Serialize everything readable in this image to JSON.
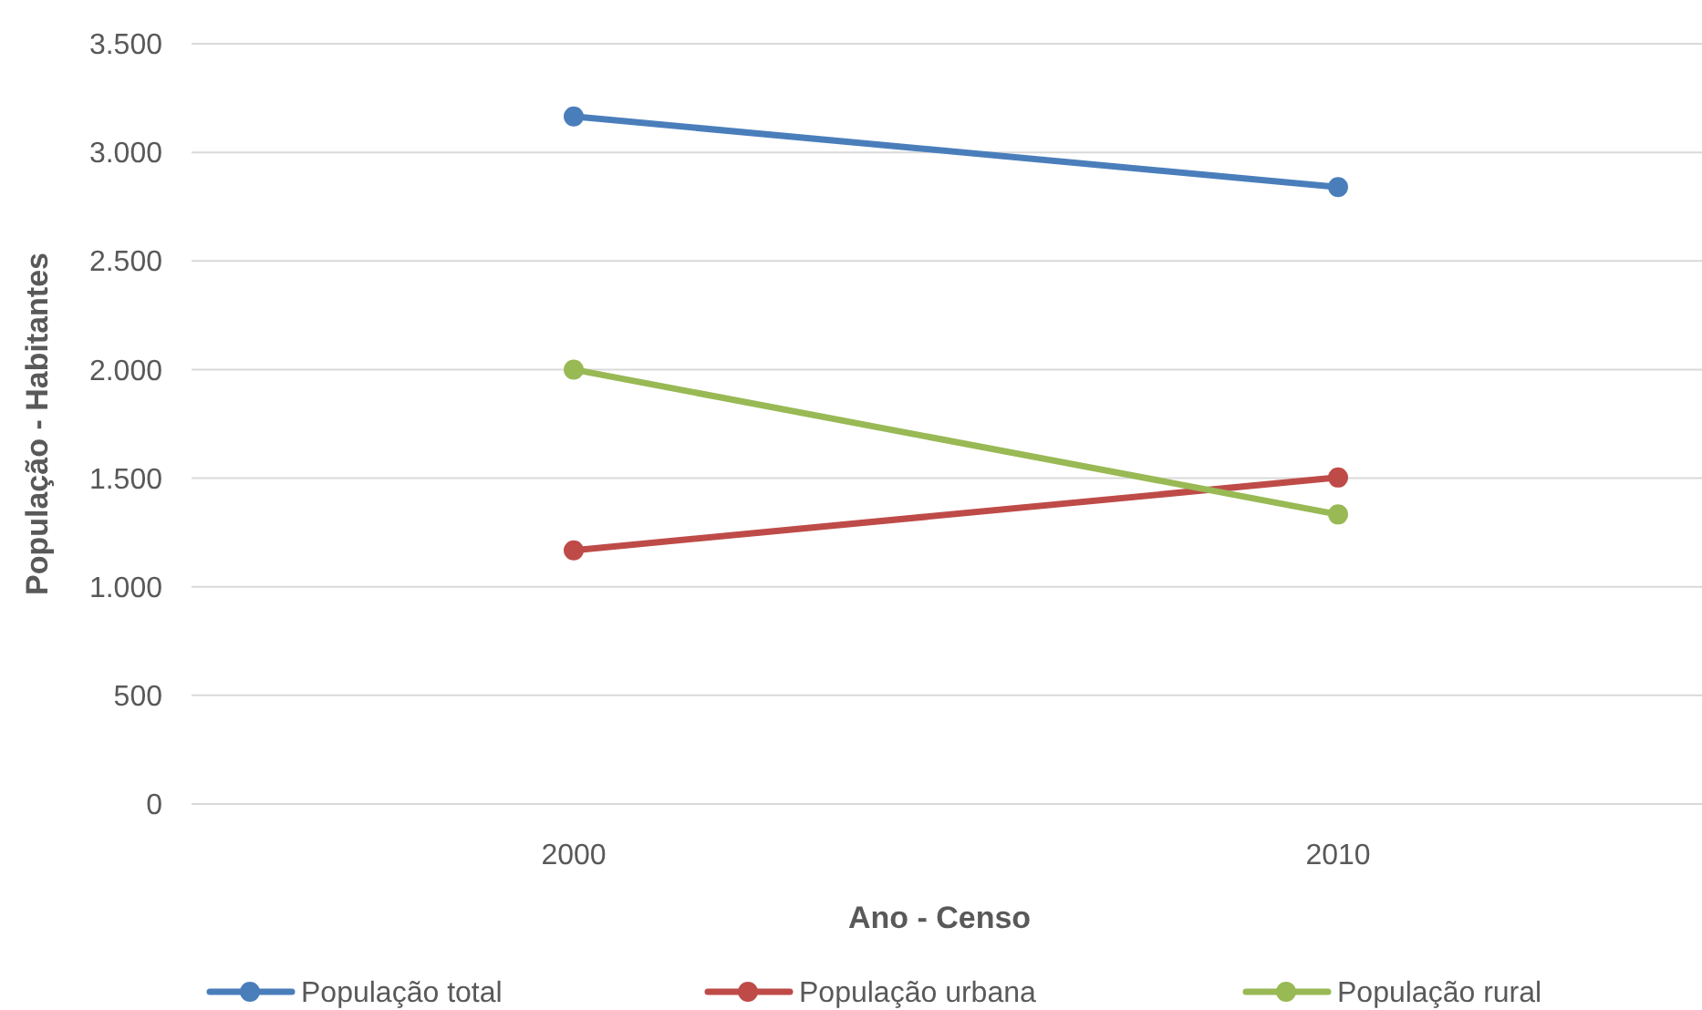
{
  "chart_data": {
    "type": "line",
    "xlabel": "Ano - Censo",
    "ylabel": "População - Habitantes",
    "categories": [
      "2000",
      "2010"
    ],
    "series": [
      {
        "name": "População total",
        "color": "#4a7ebb",
        "values": [
          3165,
          2840
        ]
      },
      {
        "name": "População urbana",
        "color": "#be4b48",
        "values": [
          1168,
          1503
        ]
      },
      {
        "name": "População rural",
        "color": "#98b954",
        "values": [
          2000,
          1333
        ]
      }
    ],
    "ylim": [
      0,
      3500
    ],
    "yticks": [
      {
        "value": 0,
        "label": "0"
      },
      {
        "value": 500,
        "label": "500"
      },
      {
        "value": 1000,
        "label": "1.000"
      },
      {
        "value": 1500,
        "label": "1.500"
      },
      {
        "value": 2000,
        "label": "2.000"
      },
      {
        "value": 2500,
        "label": "2.500"
      },
      {
        "value": 3000,
        "label": "3.000"
      },
      {
        "value": 3500,
        "label": "3.500"
      }
    ],
    "grid": "y",
    "legend": "bottom",
    "marker": "circle",
    "line_style": "solid"
  }
}
